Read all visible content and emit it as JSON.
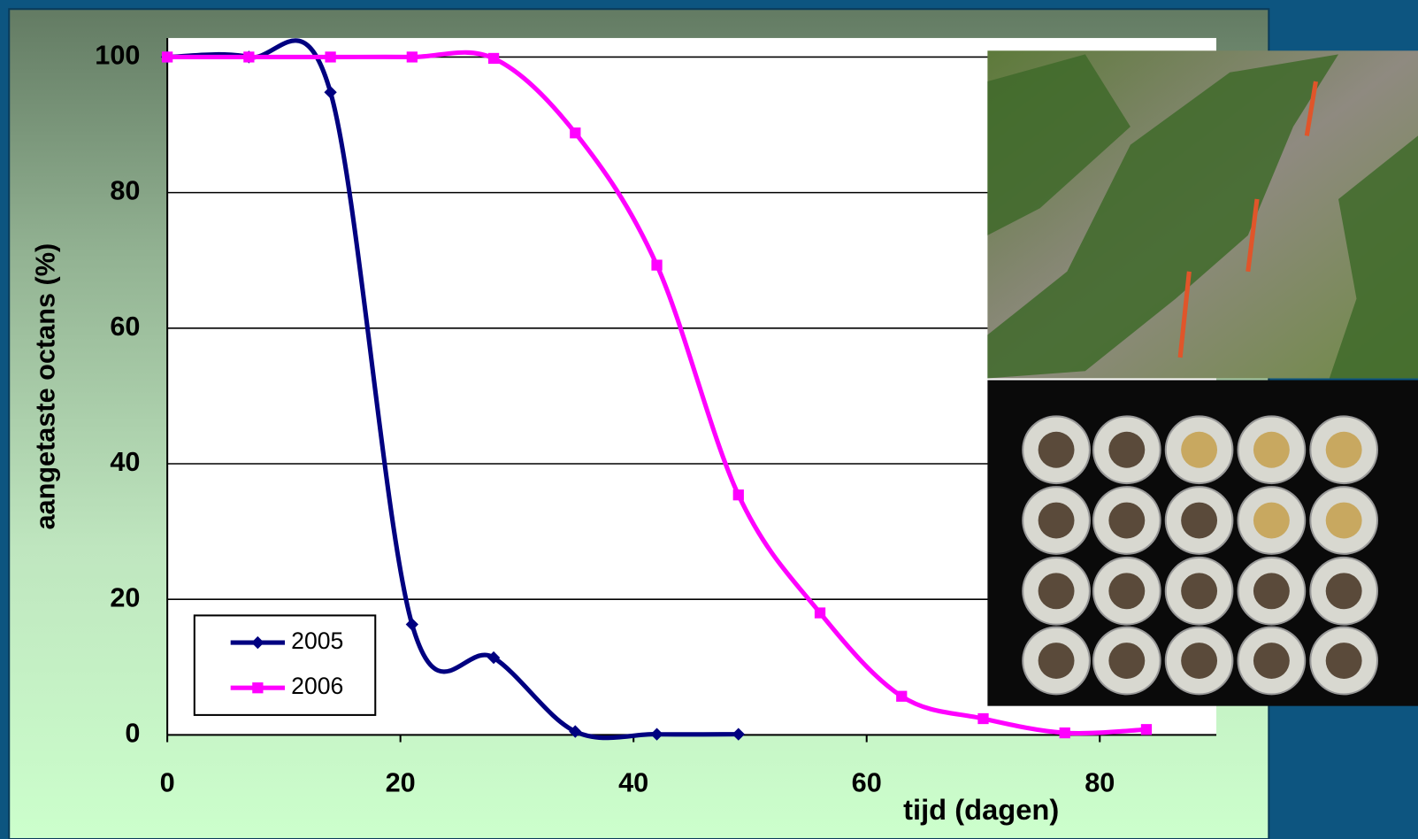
{
  "chart_data": {
    "type": "line",
    "x_label": "tijd (dagen)",
    "y_label": "aangetaste octans (%)",
    "xlim": [
      0,
      90
    ],
    "ylim": [
      0,
      100
    ],
    "xticks": [
      0,
      20,
      40,
      60,
      80
    ],
    "yticks": [
      0,
      20,
      40,
      60,
      80,
      100
    ],
    "grid": true,
    "legend": "lower left",
    "series": [
      {
        "name": "2005",
        "color": "#000080",
        "marker": "diamond",
        "x": [
          0,
          7,
          14,
          21,
          28,
          35,
          42,
          49
        ],
        "values": [
          100,
          100,
          94.8,
          16.3,
          11.4,
          0.5,
          0.1,
          0.1
        ]
      },
      {
        "name": "2006",
        "color": "#ff00ff",
        "marker": "square",
        "x": [
          0,
          7,
          14,
          21,
          28,
          35,
          42,
          49,
          56,
          63,
          70,
          77,
          84
        ],
        "values": [
          100,
          100,
          100,
          100,
          99.8,
          88.8,
          69.3,
          35.4,
          18,
          5.7,
          2.4,
          0.3,
          0.8
        ]
      }
    ]
  }
}
